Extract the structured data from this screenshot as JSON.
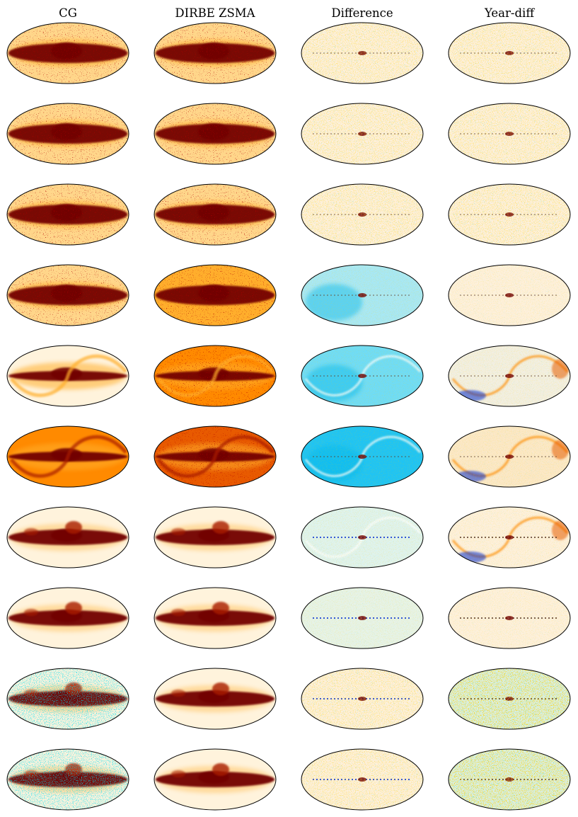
{
  "figure": {
    "column_titles": [
      "CG",
      "DIRBE ZSMA",
      "Difference",
      "Year-diff"
    ],
    "rows": 10,
    "colormaps": {
      "intensity": [
        "#fff3dc",
        "#ffd68a",
        "#ffae2c",
        "#ff8a00",
        "#e85a00",
        "#a81e00",
        "#720000"
      ],
      "difference": [
        "#002bd6",
        "#00b8f0",
        "#bdeef5",
        "#fdf0dc",
        "#ffc864",
        "#ff8a00",
        "#720000"
      ],
      "accent_blue": "#00c8f5",
      "outline": "#000000",
      "background": "#ffffff"
    }
  }
}
